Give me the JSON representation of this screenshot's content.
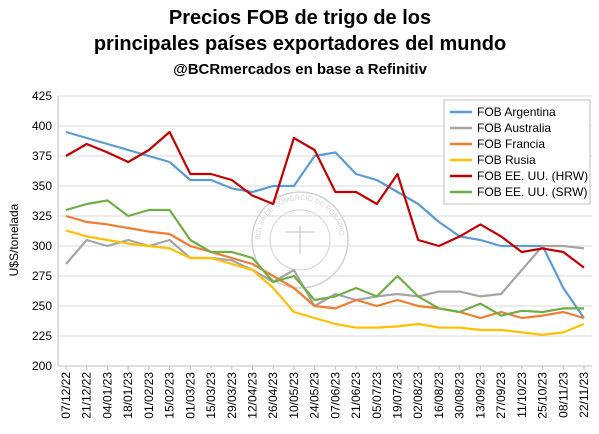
{
  "chart_data": {
    "type": "line",
    "title": "Precios FOB de trigo de los principales países exportadores del mundo",
    "title_lines": [
      "Precios FOB de trigo de los",
      "principales países exportadores del mundo"
    ],
    "subtitle": "@BCRmercados en base a Refinitiv",
    "ylabel": "U$S/tonelada",
    "xlabel": "",
    "ylim": [
      200,
      425
    ],
    "yticks": [
      200,
      225,
      250,
      275,
      300,
      325,
      350,
      375,
      400,
      425
    ],
    "grid": true,
    "legend_position": "top-right",
    "watermark_text": "BOLSA DE COMERCIO DE ROSARIO",
    "x": [
      "07/12/22",
      "21/12/22",
      "04/01/23",
      "18/01/23",
      "01/02/23",
      "15/02/23",
      "01/03/23",
      "15/03/23",
      "29/03/23",
      "12/04/23",
      "26/04/23",
      "10/05/23",
      "24/05/23",
      "07/06/23",
      "21/06/23",
      "05/07/23",
      "19/07/23",
      "02/08/23",
      "16/08/23",
      "30/08/23",
      "13/09/23",
      "27/09/23",
      "11/10/23",
      "25/10/23",
      "08/11/23",
      "22/11/23"
    ],
    "series": [
      {
        "name": "FOB Argentina",
        "color": "#5b9bd5",
        "values": [
          395,
          390,
          385,
          380,
          375,
          370,
          355,
          355,
          348,
          345,
          350,
          350,
          375,
          378,
          360,
          355,
          345,
          335,
          320,
          308,
          305,
          300,
          300,
          300,
          265,
          240
        ]
      },
      {
        "name": "FOB Australia",
        "color": "#a5a5a5",
        "values": [
          285,
          305,
          300,
          305,
          300,
          305,
          290,
          290,
          288,
          280,
          270,
          280,
          250,
          260,
          255,
          258,
          260,
          258,
          262,
          262,
          258,
          260,
          280,
          300,
          300,
          298
        ]
      },
      {
        "name": "FOB Francia",
        "color": "#ed7d31",
        "values": [
          325,
          320,
          318,
          315,
          312,
          310,
          300,
          295,
          290,
          285,
          275,
          265,
          250,
          248,
          255,
          250,
          255,
          250,
          248,
          245,
          240,
          245,
          240,
          242,
          245,
          240
        ]
      },
      {
        "name": "FOB Rusia",
        "color": "#ffc000",
        "values": [
          313,
          308,
          305,
          302,
          300,
          298,
          290,
          290,
          285,
          280,
          265,
          245,
          240,
          235,
          232,
          232,
          233,
          235,
          232,
          232,
          230,
          230,
          228,
          226,
          228,
          235
        ]
      },
      {
        "name": "FOB EE. UU. (HRW)",
        "color": "#c00000",
        "values": [
          375,
          385,
          378,
          370,
          380,
          395,
          360,
          360,
          355,
          342,
          335,
          390,
          380,
          345,
          345,
          335,
          360,
          305,
          300,
          308,
          318,
          308,
          295,
          298,
          295,
          282
        ]
      },
      {
        "name": "FOB EE. UU. (SRW)",
        "color": "#70ad47",
        "values": [
          330,
          335,
          338,
          325,
          330,
          330,
          305,
          295,
          295,
          290,
          270,
          275,
          255,
          258,
          265,
          258,
          275,
          258,
          248,
          245,
          252,
          242,
          246,
          245,
          248,
          248
        ]
      }
    ]
  }
}
